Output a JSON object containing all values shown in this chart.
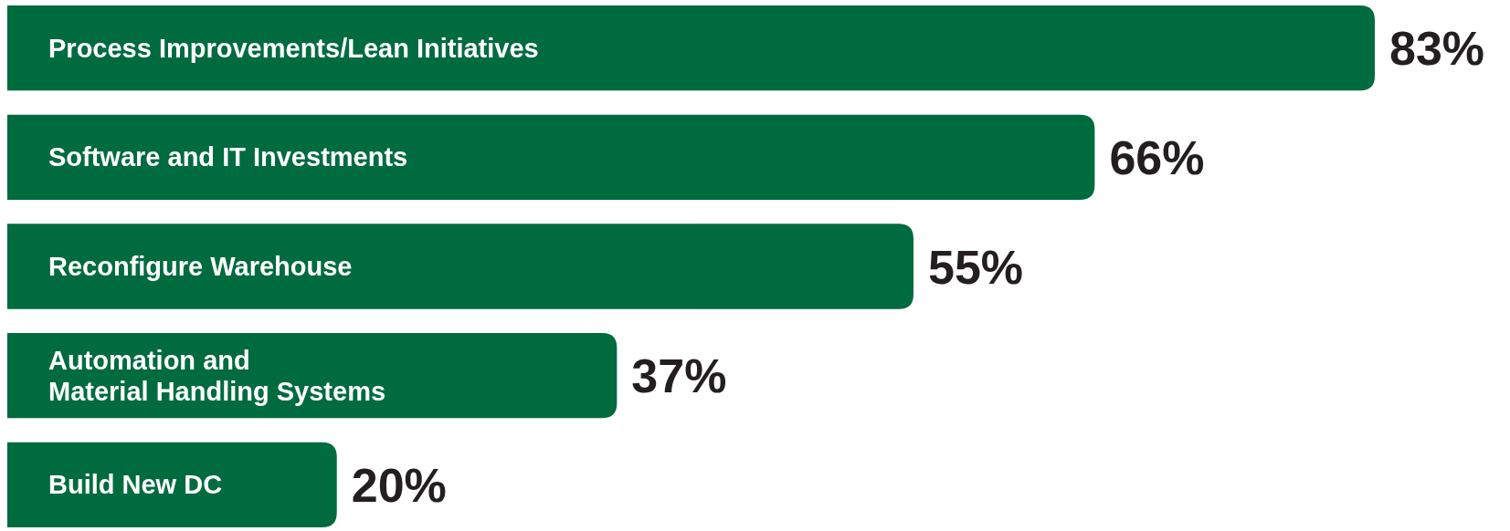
{
  "chart_data": {
    "type": "bar",
    "orientation": "horizontal",
    "categories": [
      "Process Improvements/Lean Initiatives",
      "Software and IT Investments",
      "Reconfigure Warehouse",
      "Automation and\nMaterial Handling Systems",
      "Build New DC"
    ],
    "values": [
      83,
      66,
      55,
      37,
      20
    ],
    "value_labels": [
      "83%",
      "66%",
      "55%",
      "37%",
      "20%"
    ],
    "color": "#006b3f"
  }
}
